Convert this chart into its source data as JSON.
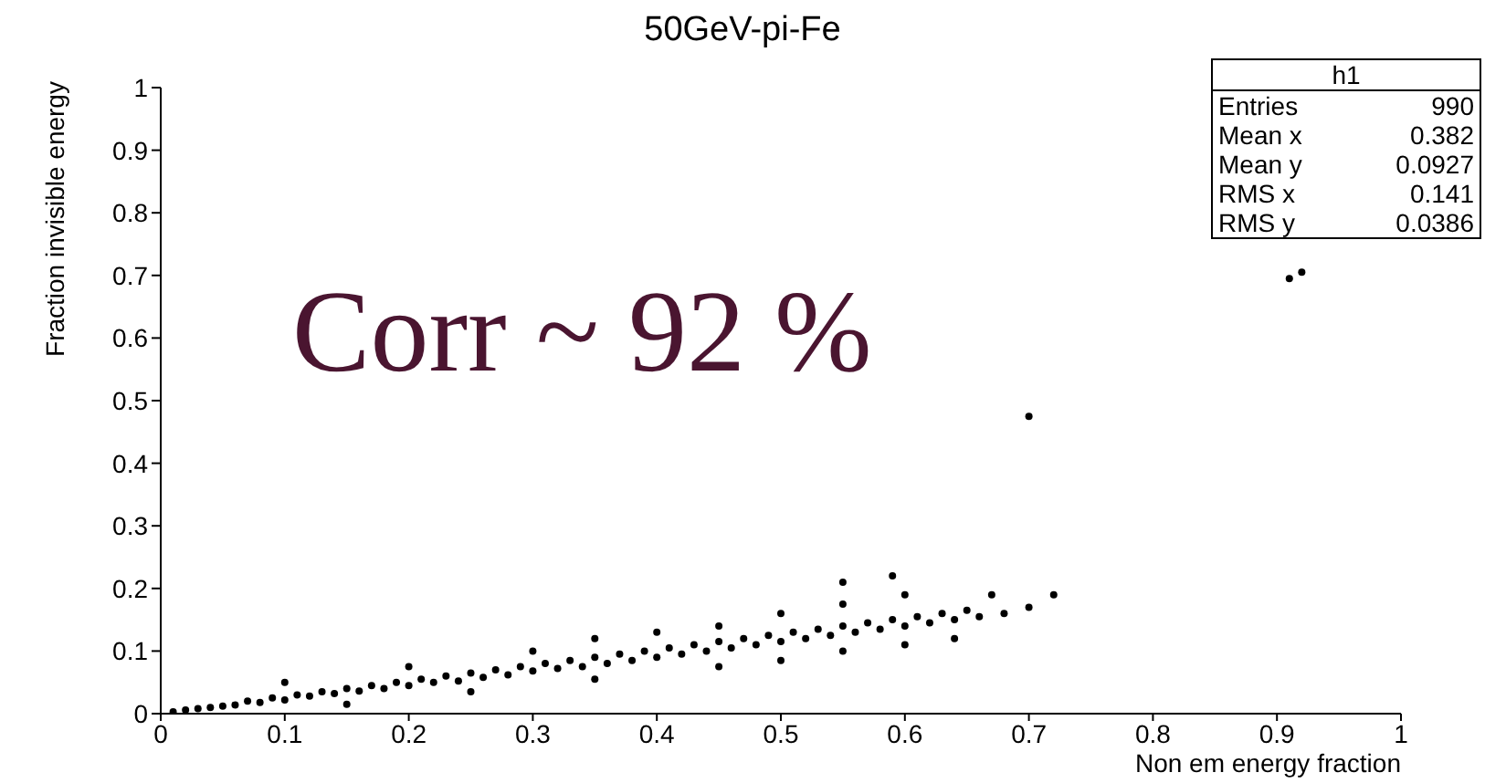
{
  "chart_data": {
    "type": "scatter",
    "title": "50GeV-pi-Fe",
    "xlabel": "Non em energy fraction",
    "ylabel": "Fraction invisible energy",
    "annotations": [
      "Corr ~ 92 %",
      "h1",
      "Entries",
      "990",
      "Mean x",
      "0.382",
      "Mean y",
      "0.0927",
      "RMS x",
      "0.141",
      "RMS y",
      "0.0386"
    ],
    "xlim": [
      0,
      1
    ],
    "ylim": [
      0,
      1
    ],
    "xticks": [
      0,
      0.1,
      0.2,
      0.3,
      0.4,
      0.5,
      0.6,
      0.7,
      0.8,
      0.9,
      1
    ],
    "yticks": [
      0,
      0.1,
      0.2,
      0.3,
      0.4,
      0.5,
      0.6,
      0.7,
      0.8,
      0.9,
      1
    ],
    "grid": false,
    "legend": false,
    "marker": "circle",
    "series": [
      {
        "color": "#000000",
        "x": [
          0.01,
          0.02,
          0.03,
          0.04,
          0.05,
          0.06,
          0.07,
          0.08,
          0.09,
          0.1,
          0.11,
          0.12,
          0.13,
          0.14,
          0.15,
          0.16,
          0.17,
          0.18,
          0.19,
          0.2,
          0.21,
          0.22,
          0.23,
          0.24,
          0.25,
          0.26,
          0.27,
          0.28,
          0.29,
          0.3,
          0.31,
          0.32,
          0.33,
          0.34,
          0.35,
          0.36,
          0.37,
          0.38,
          0.39,
          0.4,
          0.41,
          0.42,
          0.43,
          0.44,
          0.45,
          0.46,
          0.47,
          0.48,
          0.49,
          0.5,
          0.51,
          0.52,
          0.53,
          0.54,
          0.55,
          0.56,
          0.57,
          0.58,
          0.59,
          0.6,
          0.61,
          0.62,
          0.63,
          0.64,
          0.65,
          0.66,
          0.68,
          0.7,
          0.72,
          0.1,
          0.2,
          0.3,
          0.35,
          0.4,
          0.45,
          0.5,
          0.55,
          0.6,
          0.55,
          0.59,
          0.15,
          0.25,
          0.35,
          0.45,
          0.5,
          0.55,
          0.6,
          0.64,
          0.67,
          0.7,
          0.91,
          0.92
        ],
        "values": [
          0.003,
          0.006,
          0.008,
          0.01,
          0.012,
          0.014,
          0.02,
          0.018,
          0.025,
          0.022,
          0.03,
          0.028,
          0.035,
          0.032,
          0.04,
          0.036,
          0.045,
          0.04,
          0.05,
          0.045,
          0.055,
          0.05,
          0.06,
          0.052,
          0.065,
          0.058,
          0.07,
          0.062,
          0.075,
          0.068,
          0.08,
          0.072,
          0.085,
          0.075,
          0.09,
          0.08,
          0.095,
          0.085,
          0.1,
          0.09,
          0.105,
          0.095,
          0.11,
          0.1,
          0.115,
          0.105,
          0.12,
          0.11,
          0.125,
          0.115,
          0.13,
          0.12,
          0.135,
          0.125,
          0.14,
          0.13,
          0.145,
          0.135,
          0.15,
          0.14,
          0.155,
          0.145,
          0.16,
          0.15,
          0.165,
          0.155,
          0.16,
          0.17,
          0.19,
          0.05,
          0.075,
          0.1,
          0.12,
          0.13,
          0.14,
          0.16,
          0.175,
          0.19,
          0.21,
          0.22,
          0.015,
          0.035,
          0.055,
          0.075,
          0.085,
          0.1,
          0.11,
          0.12,
          0.19,
          0.475,
          0.695,
          0.705
        ]
      }
    ]
  }
}
